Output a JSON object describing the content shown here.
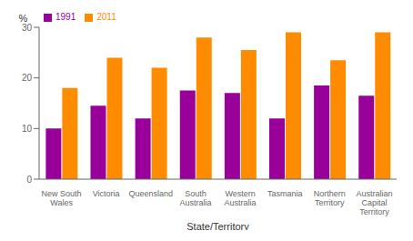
{
  "chart_data": {
    "type": "bar",
    "categories": [
      "New South\nWales",
      "Victoria",
      "Queensland",
      "South\nAustralia",
      "Western\nAustralia",
      "Tasmania",
      "Northern\nTerritory",
      "Australian\nCapital\nTerritory"
    ],
    "series": [
      {
        "name": "1991",
        "color": "#990099",
        "values": [
          10.0,
          14.5,
          12.0,
          17.5,
          17.0,
          12.0,
          18.5,
          16.5
        ]
      },
      {
        "name": "2011",
        "color": "#FF8C00",
        "values": [
          18.0,
          24.0,
          22.0,
          28.0,
          25.5,
          29.0,
          23.5,
          29.0
        ]
      }
    ],
    "xlabel": "State/Territory",
    "ylabel": "%",
    "ylim": [
      0,
      30
    ],
    "yticks": [
      0,
      10,
      20,
      30
    ],
    "legend": "top-left",
    "grid": false
  }
}
